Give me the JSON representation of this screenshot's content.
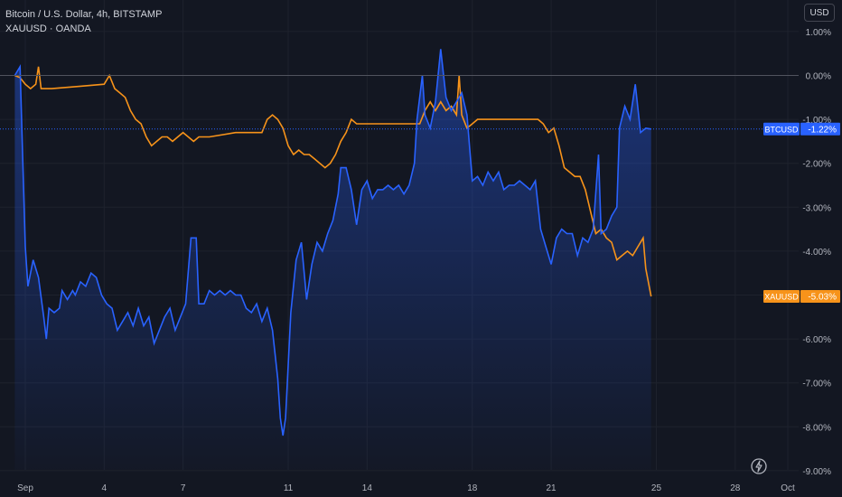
{
  "legend": {
    "line1": "Bitcoin / U.S. Dollar, 4h, BITSTAMP",
    "line2": "XAUUSD · OANDA"
  },
  "currency_button": "USD",
  "colors": {
    "background": "#131722",
    "btc": "#2962ff",
    "xau": "#f7931a",
    "grid": "#1e222d",
    "axis_text": "#b2b5be"
  },
  "icons": {
    "snap": "lightning-icon"
  },
  "chart_data": {
    "type": "line",
    "title": "",
    "xlabel": "",
    "ylabel": "",
    "ylim": [
      -9.0,
      1.0
    ],
    "y_ticks": [
      {
        "value": 1,
        "label": "1.00%"
      },
      {
        "value": 0,
        "label": "0.00%"
      },
      {
        "value": -1,
        "label": "-1.00%"
      },
      {
        "value": -2,
        "label": "-2.00%"
      },
      {
        "value": -3,
        "label": "-3.00%"
      },
      {
        "value": -4,
        "label": "-4.00%"
      },
      {
        "value": -5,
        "label": "-5.00%"
      },
      {
        "value": -6,
        "label": "-6.00%"
      },
      {
        "value": -7,
        "label": "-7.00%"
      },
      {
        "value": -8,
        "label": "-8.00%"
      },
      {
        "value": -9,
        "label": "-9.00%"
      }
    ],
    "xlim": [
      0.6,
      30.9
    ],
    "x_ticks": [
      {
        "value": 1,
        "label": "Sep"
      },
      {
        "value": 4,
        "label": "4"
      },
      {
        "value": 7,
        "label": "7"
      },
      {
        "value": 11,
        "label": "11"
      },
      {
        "value": 14,
        "label": "14"
      },
      {
        "value": 18,
        "label": "18"
      },
      {
        "value": 21,
        "label": "21"
      },
      {
        "value": 25,
        "label": "25"
      },
      {
        "value": 28,
        "label": "28"
      },
      {
        "value": 30,
        "label": "Oct"
      }
    ],
    "series": [
      {
        "name": "BTCUSD",
        "last_label": "-1.22%",
        "last_value": -1.22,
        "points": [
          [
            0.6,
            0.0
          ],
          [
            0.8,
            0.2
          ],
          [
            1.0,
            -3.9
          ],
          [
            1.1,
            -4.8
          ],
          [
            1.3,
            -4.2
          ],
          [
            1.5,
            -4.6
          ],
          [
            1.7,
            -5.5
          ],
          [
            1.8,
            -6.0
          ],
          [
            1.9,
            -5.3
          ],
          [
            2.1,
            -5.4
          ],
          [
            2.3,
            -5.3
          ],
          [
            2.4,
            -4.9
          ],
          [
            2.6,
            -5.1
          ],
          [
            2.8,
            -4.9
          ],
          [
            2.9,
            -5.0
          ],
          [
            3.1,
            -4.7
          ],
          [
            3.3,
            -4.8
          ],
          [
            3.5,
            -4.5
          ],
          [
            3.7,
            -4.6
          ],
          [
            3.9,
            -5.0
          ],
          [
            4.1,
            -5.2
          ],
          [
            4.3,
            -5.3
          ],
          [
            4.5,
            -5.8
          ],
          [
            4.7,
            -5.6
          ],
          [
            4.9,
            -5.4
          ],
          [
            5.1,
            -5.7
          ],
          [
            5.3,
            -5.3
          ],
          [
            5.5,
            -5.7
          ],
          [
            5.7,
            -5.5
          ],
          [
            5.9,
            -6.1
          ],
          [
            6.1,
            -5.8
          ],
          [
            6.3,
            -5.5
          ],
          [
            6.5,
            -5.3
          ],
          [
            6.7,
            -5.8
          ],
          [
            6.9,
            -5.5
          ],
          [
            7.1,
            -5.2
          ],
          [
            7.3,
            -3.7
          ],
          [
            7.5,
            -3.7
          ],
          [
            7.6,
            -5.2
          ],
          [
            7.8,
            -5.2
          ],
          [
            8.0,
            -4.9
          ],
          [
            8.2,
            -5.0
          ],
          [
            8.4,
            -4.9
          ],
          [
            8.6,
            -5.0
          ],
          [
            8.8,
            -4.9
          ],
          [
            9.0,
            -5.0
          ],
          [
            9.2,
            -5.0
          ],
          [
            9.4,
            -5.3
          ],
          [
            9.6,
            -5.4
          ],
          [
            9.8,
            -5.2
          ],
          [
            10.0,
            -5.6
          ],
          [
            10.2,
            -5.3
          ],
          [
            10.4,
            -5.8
          ],
          [
            10.6,
            -6.9
          ],
          [
            10.7,
            -7.8
          ],
          [
            10.8,
            -8.2
          ],
          [
            10.9,
            -7.8
          ],
          [
            11.1,
            -5.4
          ],
          [
            11.3,
            -4.2
          ],
          [
            11.5,
            -3.8
          ],
          [
            11.7,
            -5.1
          ],
          [
            11.9,
            -4.3
          ],
          [
            12.1,
            -3.8
          ],
          [
            12.3,
            -4.0
          ],
          [
            12.5,
            -3.6
          ],
          [
            12.7,
            -3.3
          ],
          [
            12.9,
            -2.7
          ],
          [
            13.0,
            -2.1
          ],
          [
            13.2,
            -2.1
          ],
          [
            13.4,
            -2.6
          ],
          [
            13.6,
            -3.4
          ],
          [
            13.8,
            -2.6
          ],
          [
            14.0,
            -2.4
          ],
          [
            14.2,
            -2.8
          ],
          [
            14.4,
            -2.6
          ],
          [
            14.6,
            -2.6
          ],
          [
            14.8,
            -2.5
          ],
          [
            15.0,
            -2.6
          ],
          [
            15.2,
            -2.5
          ],
          [
            15.4,
            -2.7
          ],
          [
            15.6,
            -2.5
          ],
          [
            15.8,
            -2.0
          ],
          [
            15.9,
            -1.0
          ],
          [
            16.1,
            0.0
          ],
          [
            16.2,
            -0.9
          ],
          [
            16.4,
            -1.2
          ],
          [
            16.6,
            -0.6
          ],
          [
            16.8,
            0.6
          ],
          [
            17.0,
            -0.5
          ],
          [
            17.2,
            -0.8
          ],
          [
            17.4,
            -0.6
          ],
          [
            17.6,
            -0.4
          ],
          [
            17.8,
            -0.9
          ],
          [
            18.0,
            -2.4
          ],
          [
            18.2,
            -2.3
          ],
          [
            18.4,
            -2.5
          ],
          [
            18.6,
            -2.2
          ],
          [
            18.8,
            -2.4
          ],
          [
            19.0,
            -2.2
          ],
          [
            19.2,
            -2.6
          ],
          [
            19.4,
            -2.5
          ],
          [
            19.6,
            -2.5
          ],
          [
            19.8,
            -2.4
          ],
          [
            20.0,
            -2.5
          ],
          [
            20.2,
            -2.6
          ],
          [
            20.4,
            -2.4
          ],
          [
            20.6,
            -3.5
          ],
          [
            20.8,
            -3.9
          ],
          [
            21.0,
            -4.3
          ],
          [
            21.2,
            -3.7
          ],
          [
            21.4,
            -3.5
          ],
          [
            21.6,
            -3.6
          ],
          [
            21.8,
            -3.6
          ],
          [
            22.0,
            -4.1
          ],
          [
            22.2,
            -3.7
          ],
          [
            22.4,
            -3.8
          ],
          [
            22.6,
            -3.5
          ],
          [
            22.8,
            -1.8
          ],
          [
            22.9,
            -3.6
          ],
          [
            23.1,
            -3.5
          ],
          [
            23.3,
            -3.2
          ],
          [
            23.5,
            -3.0
          ],
          [
            23.6,
            -1.2
          ],
          [
            23.8,
            -0.7
          ],
          [
            24.0,
            -1.0
          ],
          [
            24.2,
            -0.2
          ],
          [
            24.4,
            -1.3
          ],
          [
            24.6,
            -1.2
          ],
          [
            24.8,
            -1.22
          ]
        ]
      },
      {
        "name": "XAUUSD",
        "last_label": "-5.03%",
        "last_value": -5.03,
        "points": [
          [
            0.6,
            0.0
          ],
          [
            0.8,
            -0.05
          ],
          [
            1.0,
            -0.2
          ],
          [
            1.2,
            -0.3
          ],
          [
            1.4,
            -0.2
          ],
          [
            1.5,
            0.2
          ],
          [
            1.6,
            -0.3
          ],
          [
            1.8,
            -0.3
          ],
          [
            2.0,
            -0.3
          ],
          [
            3.0,
            -0.25
          ],
          [
            4.0,
            -0.2
          ],
          [
            4.2,
            0.0
          ],
          [
            4.4,
            -0.3
          ],
          [
            4.6,
            -0.4
          ],
          [
            4.8,
            -0.5
          ],
          [
            5.0,
            -0.8
          ],
          [
            5.2,
            -1.0
          ],
          [
            5.4,
            -1.1
          ],
          [
            5.6,
            -1.4
          ],
          [
            5.8,
            -1.6
          ],
          [
            6.0,
            -1.5
          ],
          [
            6.2,
            -1.4
          ],
          [
            6.4,
            -1.4
          ],
          [
            6.6,
            -1.5
          ],
          [
            6.8,
            -1.4
          ],
          [
            7.0,
            -1.3
          ],
          [
            7.2,
            -1.4
          ],
          [
            7.4,
            -1.5
          ],
          [
            7.6,
            -1.4
          ],
          [
            8.0,
            -1.4
          ],
          [
            9.0,
            -1.3
          ],
          [
            10.0,
            -1.3
          ],
          [
            10.2,
            -1.0
          ],
          [
            10.4,
            -0.9
          ],
          [
            10.6,
            -1.0
          ],
          [
            10.8,
            -1.2
          ],
          [
            11.0,
            -1.6
          ],
          [
            11.2,
            -1.8
          ],
          [
            11.4,
            -1.7
          ],
          [
            11.6,
            -1.8
          ],
          [
            11.8,
            -1.8
          ],
          [
            12.0,
            -1.9
          ],
          [
            12.2,
            -2.0
          ],
          [
            12.4,
            -2.1
          ],
          [
            12.6,
            -2.0
          ],
          [
            12.8,
            -1.8
          ],
          [
            13.0,
            -1.5
          ],
          [
            13.2,
            -1.3
          ],
          [
            13.4,
            -1.0
          ],
          [
            13.6,
            -1.1
          ],
          [
            14.0,
            -1.1
          ],
          [
            15.0,
            -1.1
          ],
          [
            16.0,
            -1.1
          ],
          [
            16.2,
            -0.8
          ],
          [
            16.4,
            -0.6
          ],
          [
            16.6,
            -0.8
          ],
          [
            16.8,
            -0.6
          ],
          [
            17.0,
            -0.8
          ],
          [
            17.2,
            -0.7
          ],
          [
            17.4,
            -0.9
          ],
          [
            17.5,
            0.0
          ],
          [
            17.6,
            -0.9
          ],
          [
            17.8,
            -1.2
          ],
          [
            18.0,
            -1.1
          ],
          [
            18.2,
            -1.0
          ],
          [
            18.4,
            -1.0
          ],
          [
            19.0,
            -1.0
          ],
          [
            20.0,
            -1.0
          ],
          [
            20.5,
            -1.0
          ],
          [
            20.7,
            -1.1
          ],
          [
            20.9,
            -1.3
          ],
          [
            21.1,
            -1.2
          ],
          [
            21.3,
            -1.6
          ],
          [
            21.5,
            -2.1
          ],
          [
            21.7,
            -2.2
          ],
          [
            21.9,
            -2.3
          ],
          [
            22.1,
            -2.3
          ],
          [
            22.3,
            -2.6
          ],
          [
            22.5,
            -3.1
          ],
          [
            22.7,
            -3.6
          ],
          [
            22.9,
            -3.5
          ],
          [
            23.1,
            -3.7
          ],
          [
            23.3,
            -3.8
          ],
          [
            23.5,
            -4.2
          ],
          [
            23.7,
            -4.1
          ],
          [
            23.9,
            -4.0
          ],
          [
            24.1,
            -4.1
          ],
          [
            24.3,
            -3.9
          ],
          [
            24.5,
            -3.7
          ],
          [
            24.6,
            -4.4
          ],
          [
            24.8,
            -5.03
          ]
        ]
      }
    ],
    "grid": true,
    "legend_position": "top-left"
  }
}
